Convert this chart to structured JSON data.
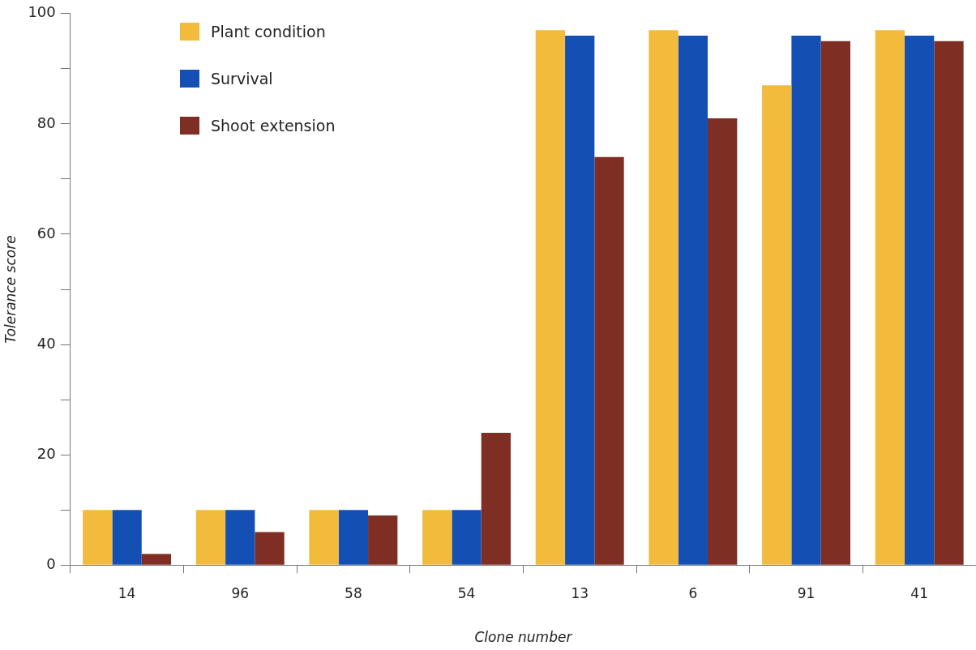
{
  "chart_data": {
    "type": "bar",
    "xlabel": "Clone number",
    "ylabel": "Tolerance score",
    "categories": [
      "14",
      "96",
      "58",
      "54",
      "13",
      "6",
      "91",
      "41"
    ],
    "series": [
      {
        "name": "Plant condition",
        "color": "#f2bb3c",
        "values": [
          10,
          10,
          10,
          10,
          97,
          97,
          87,
          97
        ]
      },
      {
        "name": "Survival",
        "color": "#1450b4",
        "values": [
          10,
          10,
          10,
          10,
          96,
          96,
          96,
          96
        ]
      },
      {
        "name": "Shoot extension",
        "color": "#7e2e22",
        "values": [
          2,
          6,
          9,
          24,
          74,
          81,
          95,
          95
        ]
      }
    ],
    "ylim": [
      0,
      100
    ],
    "yticks": [
      0,
      {
        "value": 10,
        "label": null
      },
      20,
      {
        "value": 30,
        "label": null
      },
      40,
      {
        "value": 50,
        "label": null
      },
      60,
      {
        "value": 70,
        "label": null
      },
      80,
      {
        "value": 90,
        "label": null
      },
      100
    ],
    "grid": false,
    "legend": "top left"
  }
}
